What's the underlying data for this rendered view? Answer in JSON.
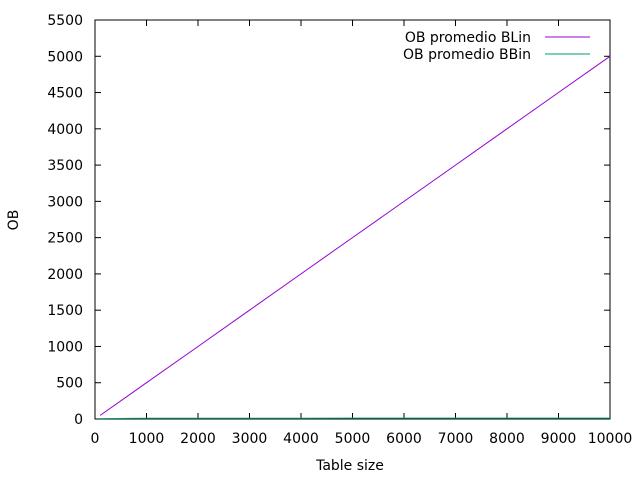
{
  "chart_data": {
    "type": "line",
    "title": "",
    "xlabel": "Table size",
    "ylabel": "OB",
    "xlim": [
      0,
      10000
    ],
    "ylim": [
      0,
      5500
    ],
    "xticks": [
      0,
      1000,
      2000,
      3000,
      4000,
      5000,
      6000,
      7000,
      8000,
      9000,
      10000
    ],
    "yticks": [
      0,
      500,
      1000,
      1500,
      2000,
      2500,
      3000,
      3500,
      4000,
      4500,
      5000,
      5500
    ],
    "grid": false,
    "legend_position": "top-right",
    "series": [
      {
        "name": "OB promedio BLin",
        "color": "#9400d3",
        "x": [
          100,
          1000,
          2000,
          3000,
          4000,
          5000,
          6000,
          7000,
          8000,
          9000,
          10000
        ],
        "y": [
          50,
          500,
          1000,
          1500,
          2000,
          2500,
          3000,
          3500,
          4000,
          4500,
          5000
        ]
      },
      {
        "name": "OB promedio BBin",
        "color": "#009e73",
        "x": [
          100,
          1000,
          2000,
          3000,
          4000,
          5000,
          6000,
          7000,
          8000,
          9000,
          10000
        ],
        "y": [
          6,
          9,
          10,
          11,
          11,
          12,
          12,
          12,
          12,
          13,
          13
        ]
      }
    ]
  }
}
